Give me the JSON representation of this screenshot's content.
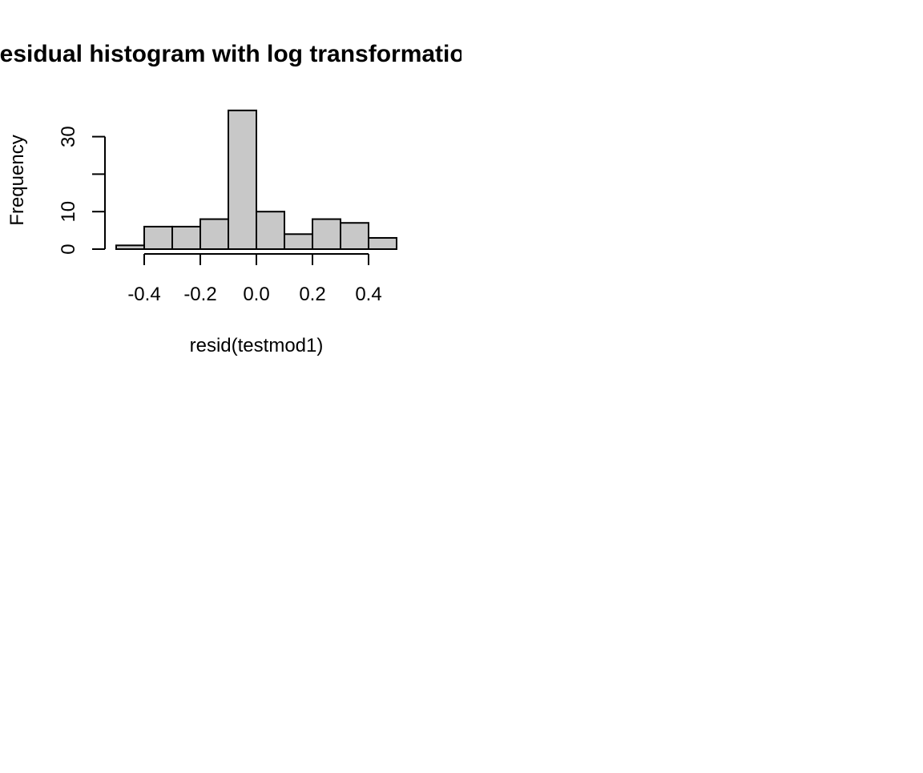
{
  "chart_data": {
    "type": "bar",
    "title": "Residual histogram with log transformation",
    "xlabel": "resid(testmod1)",
    "ylabel": "Frequency",
    "bins": [
      {
        "x0": -0.5,
        "x1": -0.4,
        "count": 1
      },
      {
        "x0": -0.4,
        "x1": -0.3,
        "count": 6
      },
      {
        "x0": -0.3,
        "x1": -0.2,
        "count": 6
      },
      {
        "x0": -0.2,
        "x1": -0.1,
        "count": 8
      },
      {
        "x0": -0.1,
        "x1": 0.0,
        "count": 37
      },
      {
        "x0": 0.0,
        "x1": 0.1,
        "count": 10
      },
      {
        "x0": 0.1,
        "x1": 0.2,
        "count": 4
      },
      {
        "x0": 0.2,
        "x1": 0.3,
        "count": 8
      },
      {
        "x0": 0.3,
        "x1": 0.4,
        "count": 7
      },
      {
        "x0": 0.4,
        "x1": 0.5,
        "count": 3
      }
    ],
    "xlim": [
      -0.5,
      0.5
    ],
    "ylim": [
      0,
      37
    ],
    "x_ticks": [
      -0.4,
      -0.2,
      0.0,
      0.2,
      0.4
    ],
    "x_tick_labels": [
      "-0.4",
      "-0.2",
      "0.0",
      "0.2",
      "0.4"
    ],
    "y_ticks": [
      0,
      10,
      20,
      30
    ],
    "y_tick_labels": [
      "0",
      "10",
      "",
      "30"
    ],
    "grid": false,
    "colors": {
      "bar_fill": "#c8c8c8",
      "bar_stroke": "#000000"
    }
  }
}
